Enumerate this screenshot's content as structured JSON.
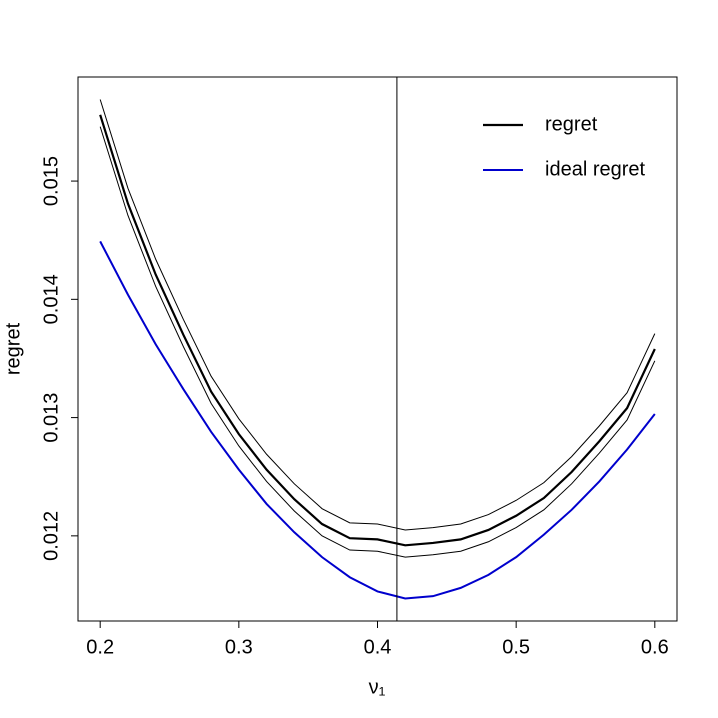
{
  "chart_data": {
    "type": "line",
    "x_label": "ν₁",
    "y_label": "regret",
    "x": [
      0.2,
      0.22,
      0.24,
      0.26,
      0.28,
      0.3,
      0.32,
      0.34,
      0.36,
      0.38,
      0.4,
      0.42,
      0.44,
      0.46,
      0.48,
      0.5,
      0.52,
      0.54,
      0.56,
      0.58,
      0.6
    ],
    "series": [
      {
        "name": "regret",
        "color": "#000000",
        "line_width": 2.2,
        "values": [
          0.01556,
          0.01481,
          0.01421,
          0.0137,
          0.01322,
          0.01286,
          0.01256,
          0.01231,
          0.0121,
          0.01198,
          0.01197,
          0.01192,
          0.01194,
          0.01197,
          0.01205,
          0.01217,
          0.01232,
          0.01254,
          0.0128,
          0.01308,
          0.01358
        ]
      },
      {
        "color": "#000000",
        "line_width": 1,
        "values": [
          0.01569,
          0.01494,
          0.01434,
          0.01383,
          0.01335,
          0.01299,
          0.01269,
          0.01244,
          0.01223,
          0.01211,
          0.0121,
          0.01205,
          0.01207,
          0.0121,
          0.01218,
          0.0123,
          0.01245,
          0.01267,
          0.01293,
          0.01321,
          0.01371
        ]
      },
      {
        "color": "#000000",
        "line_width": 1,
        "values": [
          0.01546,
          0.01471,
          0.01411,
          0.0136,
          0.01312,
          0.01276,
          0.01246,
          0.01221,
          0.012,
          0.01188,
          0.01187,
          0.01182,
          0.01184,
          0.01187,
          0.01195,
          0.01207,
          0.01222,
          0.01244,
          0.0127,
          0.01298,
          0.01348
        ]
      },
      {
        "name": "ideal regret",
        "color": "#0000cd",
        "line_width": 2,
        "values": [
          0.01449,
          0.01404,
          0.01362,
          0.01324,
          0.01288,
          0.01256,
          0.01227,
          0.01203,
          0.01182,
          0.01165,
          0.01153,
          0.01147,
          0.01149,
          0.01156,
          0.01167,
          0.01182,
          0.01201,
          0.01222,
          0.01246,
          0.01273,
          0.01303
        ]
      }
    ],
    "vline": 0.414,
    "xlim": [
      0.184,
      0.616
    ],
    "xticks": [
      0.2,
      0.3,
      0.4,
      0.5,
      0.6
    ],
    "ylim": [
      0.01128,
      0.01588
    ],
    "yticks": [
      0.012,
      0.013,
      0.014,
      0.015
    ],
    "grid": false,
    "legend": "top-right"
  }
}
